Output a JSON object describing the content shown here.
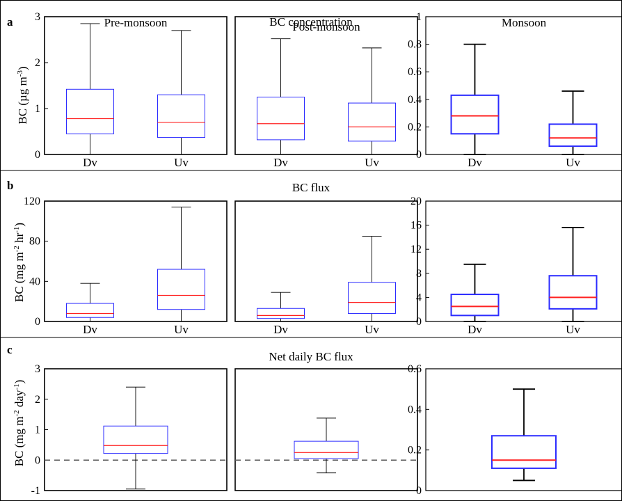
{
  "figure": {
    "panels": [
      {
        "letter": "a",
        "title": "BC concentration",
        "ylabel": "BC (µg m",
        "ylabel_sup": "-3",
        "ylabel_end": ")"
      },
      {
        "letter": "b",
        "title": "BC flux",
        "ylabel": "BC (mg m",
        "ylabel_sup": "-2",
        "ylabel_mid": " hr",
        "ylabel_sup2": "-1",
        "ylabel_end": ")"
      },
      {
        "letter": "c",
        "title": "Net daily BC flux",
        "ylabel": "BC (mg m",
        "ylabel_sup": "-2",
        "ylabel_mid": " day",
        "ylabel_sup2": "-1",
        "ylabel_end": ")"
      }
    ],
    "colors": {
      "box_edge": "#2b2bff",
      "median": "#ff2020",
      "whisker": "#000000",
      "zero_line": "#555555"
    }
  },
  "chart_data": [
    {
      "type": "box",
      "panel": "a",
      "season": "Pre-monsoon",
      "title": "Pre-monsoon",
      "ylim": [
        0,
        3
      ],
      "yticks": [
        0,
        1,
        2,
        3
      ],
      "categories": [
        "Dv",
        "Uv"
      ],
      "boxes": [
        {
          "min": 0.0,
          "q1": 0.45,
          "median": 0.78,
          "q3": 1.42,
          "max": 2.85
        },
        {
          "min": 0.0,
          "q1": 0.37,
          "median": 0.7,
          "q3": 1.3,
          "max": 2.7
        }
      ]
    },
    {
      "type": "box",
      "panel": "a",
      "season": "Post-monsoon",
      "title": "Post-monsoon",
      "ylim": [
        0,
        3
      ],
      "yticks": [],
      "categories": [
        "Dv",
        "Uv"
      ],
      "boxes": [
        {
          "min": 0.0,
          "q1": 0.32,
          "median": 0.67,
          "q3": 1.25,
          "max": 2.52
        },
        {
          "min": 0.0,
          "q1": 0.29,
          "median": 0.6,
          "q3": 1.12,
          "max": 2.32
        }
      ]
    },
    {
      "type": "box",
      "panel": "a",
      "season": "Monsoon",
      "title": "Monsoon",
      "ylim": [
        0,
        1
      ],
      "yticks": [
        0,
        0.2,
        0.4,
        0.6,
        0.8,
        1
      ],
      "categories": [
        "Dv",
        "Uv"
      ],
      "boxes": [
        {
          "min": 0.0,
          "q1": 0.15,
          "median": 0.28,
          "q3": 0.43,
          "max": 0.8
        },
        {
          "min": 0.0,
          "q1": 0.06,
          "median": 0.12,
          "q3": 0.22,
          "max": 0.46
        }
      ]
    },
    {
      "type": "box",
      "panel": "b",
      "ylim": [
        0,
        120
      ],
      "yticks": [
        0,
        40,
        80,
        120
      ],
      "categories": [
        "Dv",
        "Uv"
      ],
      "boxes": [
        {
          "min": 0,
          "q1": 4,
          "median": 8,
          "q3": 18,
          "max": 38
        },
        {
          "min": 0,
          "q1": 12,
          "median": 26,
          "q3": 52,
          "max": 114
        }
      ]
    },
    {
      "type": "box",
      "panel": "b",
      "ylim": [
        0,
        120
      ],
      "yticks": [],
      "categories": [
        "Dv",
        "Uv"
      ],
      "boxes": [
        {
          "min": 0,
          "q1": 3,
          "median": 6,
          "q3": 13,
          "max": 29
        },
        {
          "min": 0,
          "q1": 8,
          "median": 19,
          "q3": 39,
          "max": 85
        }
      ]
    },
    {
      "type": "box",
      "panel": "b",
      "ylim": [
        0,
        20
      ],
      "yticks": [
        0,
        4,
        8,
        12,
        16,
        20
      ],
      "categories": [
        "Dv",
        "Uv"
      ],
      "boxes": [
        {
          "min": 0,
          "q1": 1.0,
          "median": 2.5,
          "q3": 4.5,
          "max": 9.5
        },
        {
          "min": 0,
          "q1": 2.1,
          "median": 4.0,
          "q3": 7.6,
          "max": 15.6
        }
      ]
    },
    {
      "type": "box",
      "panel": "c",
      "ylim": [
        -1,
        3
      ],
      "yticks": [
        -1,
        0,
        1,
        2,
        3
      ],
      "zero_line": 0,
      "categories": [
        ""
      ],
      "boxes": [
        {
          "min": -0.95,
          "q1": 0.22,
          "median": 0.48,
          "q3": 1.12,
          "max": 2.4
        }
      ]
    },
    {
      "type": "box",
      "panel": "c",
      "ylim": [
        -1,
        3
      ],
      "yticks": [],
      "zero_line": 0,
      "categories": [
        ""
      ],
      "boxes": [
        {
          "min": -0.42,
          "q1": 0.05,
          "median": 0.25,
          "q3": 0.62,
          "max": 1.38
        }
      ]
    },
    {
      "type": "box",
      "panel": "c",
      "ylim": [
        0,
        0.6
      ],
      "yticks": [
        0,
        0.2,
        0.4,
        0.6
      ],
      "categories": [
        ""
      ],
      "boxes": [
        {
          "min": 0.05,
          "q1": 0.11,
          "median": 0.15,
          "q3": 0.27,
          "max": 0.5
        }
      ]
    }
  ]
}
